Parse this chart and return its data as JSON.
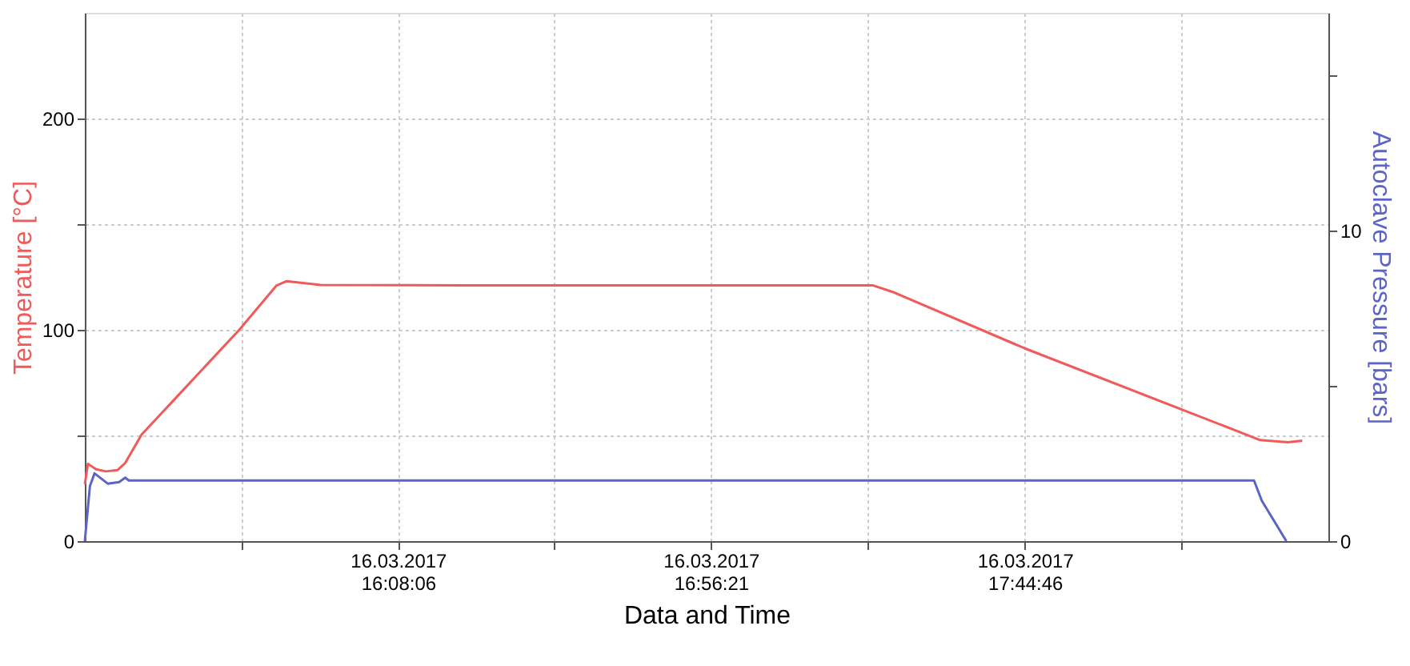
{
  "chart_data": {
    "type": "line",
    "xlabel": "Data and Time",
    "ylabel": "Temperature [°C]",
    "y2label": "Autoclave Pressure [bars]",
    "xlim": [
      "2017-03-16T15:19:48",
      "2017-03-16T18:31:34"
    ],
    "ylim": [
      0,
      250
    ],
    "y2lim": [
      0,
      17
    ],
    "xticks": [
      {
        "value": "2017-03-16T15:43:59",
        "label": null
      },
      {
        "value": "2017-03-16T16:08:06",
        "label": "16.03.2017\n16:08:06"
      },
      {
        "value": "2017-03-16T16:32:13",
        "label": null
      },
      {
        "value": "2017-03-16T16:56:21",
        "label": "16.03.2017\n16:56:21"
      },
      {
        "value": "2017-03-16T17:20:35",
        "label": null
      },
      {
        "value": "2017-03-16T17:44:46",
        "label": "16.03.2017\n17:44:46"
      },
      {
        "value": "2017-03-16T18:08:56",
        "label": null
      }
    ],
    "yticks": [
      0,
      {
        "value": 50,
        "label": null
      },
      100,
      {
        "value": 150,
        "label": null
      },
      200
    ],
    "y2ticks": [
      0,
      {
        "value": 5,
        "label": null
      },
      10,
      {
        "value": 15,
        "label": null
      }
    ],
    "grid": true,
    "marker": "none",
    "line_style": "solid",
    "series": [
      {
        "color": "#f05a5a",
        "x": [
          "2017-03-16T15:19:48",
          "2017-03-16T15:20:17",
          "2017-03-16T15:21:32",
          "2017-03-16T15:23:02",
          "2017-03-16T15:24:50",
          "2017-03-16T15:26:02",
          "2017-03-16T15:28:34",
          "2017-03-16T15:33:36",
          "2017-03-16T15:43:37",
          "2017-03-16T15:49:23",
          "2017-03-16T15:50:53",
          "2017-03-16T15:56:10",
          "2017-03-16T16:18:43",
          "2017-03-16T17:21:22",
          "2017-03-16T17:24:18",
          "2017-03-16T17:44:46",
          "2017-03-16T18:21:04",
          "2017-03-16T18:25:19",
          "2017-03-16T18:27:32"
        ],
        "values": [
          27,
          36.6,
          34,
          33,
          33.6,
          37,
          50.5,
          67,
          100,
          121,
          123,
          121.2,
          121,
          121,
          118,
          91.2,
          47.8,
          46.8,
          47.5
        ]
      },
      {
        "color": "#5c64c8",
        "axis": "y2",
        "x": [
          "2017-03-16T15:19:48",
          "2017-03-16T15:20:35",
          "2017-03-16T15:21:18",
          "2017-03-16T15:23:20",
          "2017-03-16T15:25:05",
          "2017-03-16T15:26:02",
          "2017-03-16T15:26:35",
          "2017-03-16T16:18:43",
          "2017-03-16T18:20:06",
          "2017-03-16T18:21:18",
          "2017-03-16T18:25:05"
        ],
        "values": [
          0,
          1.77,
          2.18,
          1.85,
          1.9,
          2.04,
          1.95,
          1.95,
          1.95,
          1.3,
          0
        ]
      }
    ]
  }
}
